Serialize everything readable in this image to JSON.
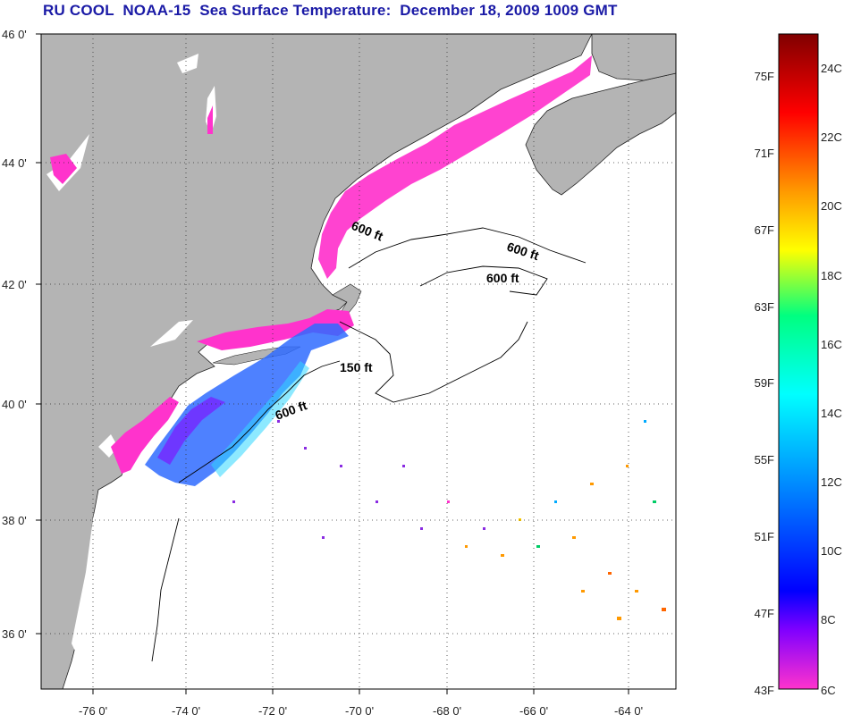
{
  "title": "RU COOL  NOAA-15  Sea Surface Temperature:  December 18, 2009 1009 GMT",
  "map": {
    "lat_labels": [
      "46 0'",
      "44 0'",
      "42 0'",
      "40 0'",
      "38 0'",
      "36 0'"
    ],
    "lon_labels": [
      "-76 0'",
      "-74 0'",
      "-72 0'",
      "-70 0'",
      "-68 0'",
      "-66 0'",
      "-64 0'"
    ],
    "contour_labels": [
      "600 ft",
      "600 ft",
      "600 ft",
      "150 ft",
      "600 ft"
    ],
    "colors": {
      "land": "#b4b4b4",
      "water": "#ffffff",
      "coastal_cold": "#ff33cc",
      "offshore": "#2f6bff"
    }
  },
  "colorbar": {
    "fahrenheit_labels": [
      "75F",
      "71F",
      "67F",
      "63F",
      "59F",
      "55F",
      "51F",
      "47F",
      "43F"
    ],
    "celsius_labels": [
      "24C",
      "22C",
      "20C",
      "18C",
      "16C",
      "14C",
      "12C",
      "10C",
      "8C",
      "6C"
    ],
    "colors": [
      "#ff33cc",
      "#8000ff",
      "#0000ff",
      "#0080ff",
      "#00ffff",
      "#00ff80",
      "#ffff00",
      "#ff9900",
      "#ff0000",
      "#800000"
    ]
  }
}
